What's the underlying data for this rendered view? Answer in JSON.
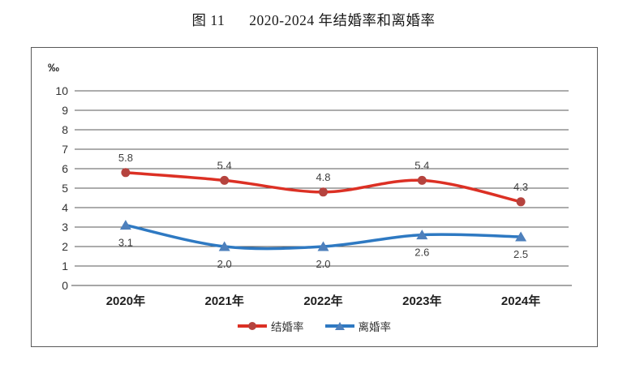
{
  "figure": {
    "label": "图 11",
    "title": "2020-2024 年结婚率和离婚率"
  },
  "chart_data": {
    "type": "line",
    "title": "图 11 2020-2024 年结婚率和离婚率",
    "unit_label": "‰",
    "categories": [
      "2020年",
      "2021年",
      "2022年",
      "2023年",
      "2024年"
    ],
    "series": [
      {
        "id": "marriage-rate",
        "name": "结婚率",
        "values": [
          5.8,
          5.4,
          4.8,
          5.4,
          4.3
        ],
        "color": "#DC3024",
        "marker_color": "#B5433E",
        "marker": "circle",
        "label_position": "above"
      },
      {
        "id": "divorce-rate",
        "name": "离婚率",
        "values": [
          3.1,
          2.0,
          2.0,
          2.6,
          2.5
        ],
        "color": "#2E79C2",
        "marker_color": "#4E80BC",
        "marker": "triangle",
        "label_position": "below"
      }
    ],
    "y_ticks": [
      0,
      1,
      2,
      3,
      4,
      5,
      6,
      7,
      8,
      9,
      10
    ],
    "ylim": [
      0,
      10
    ],
    "grid": true,
    "smooth": true,
    "legend_position": "bottom",
    "colors": {
      "gridline": "#595959",
      "zero_line": "#A6A6A6",
      "frame_border": "#595959",
      "tick_text": "#333333",
      "data_label": "#3F3F3F"
    }
  }
}
